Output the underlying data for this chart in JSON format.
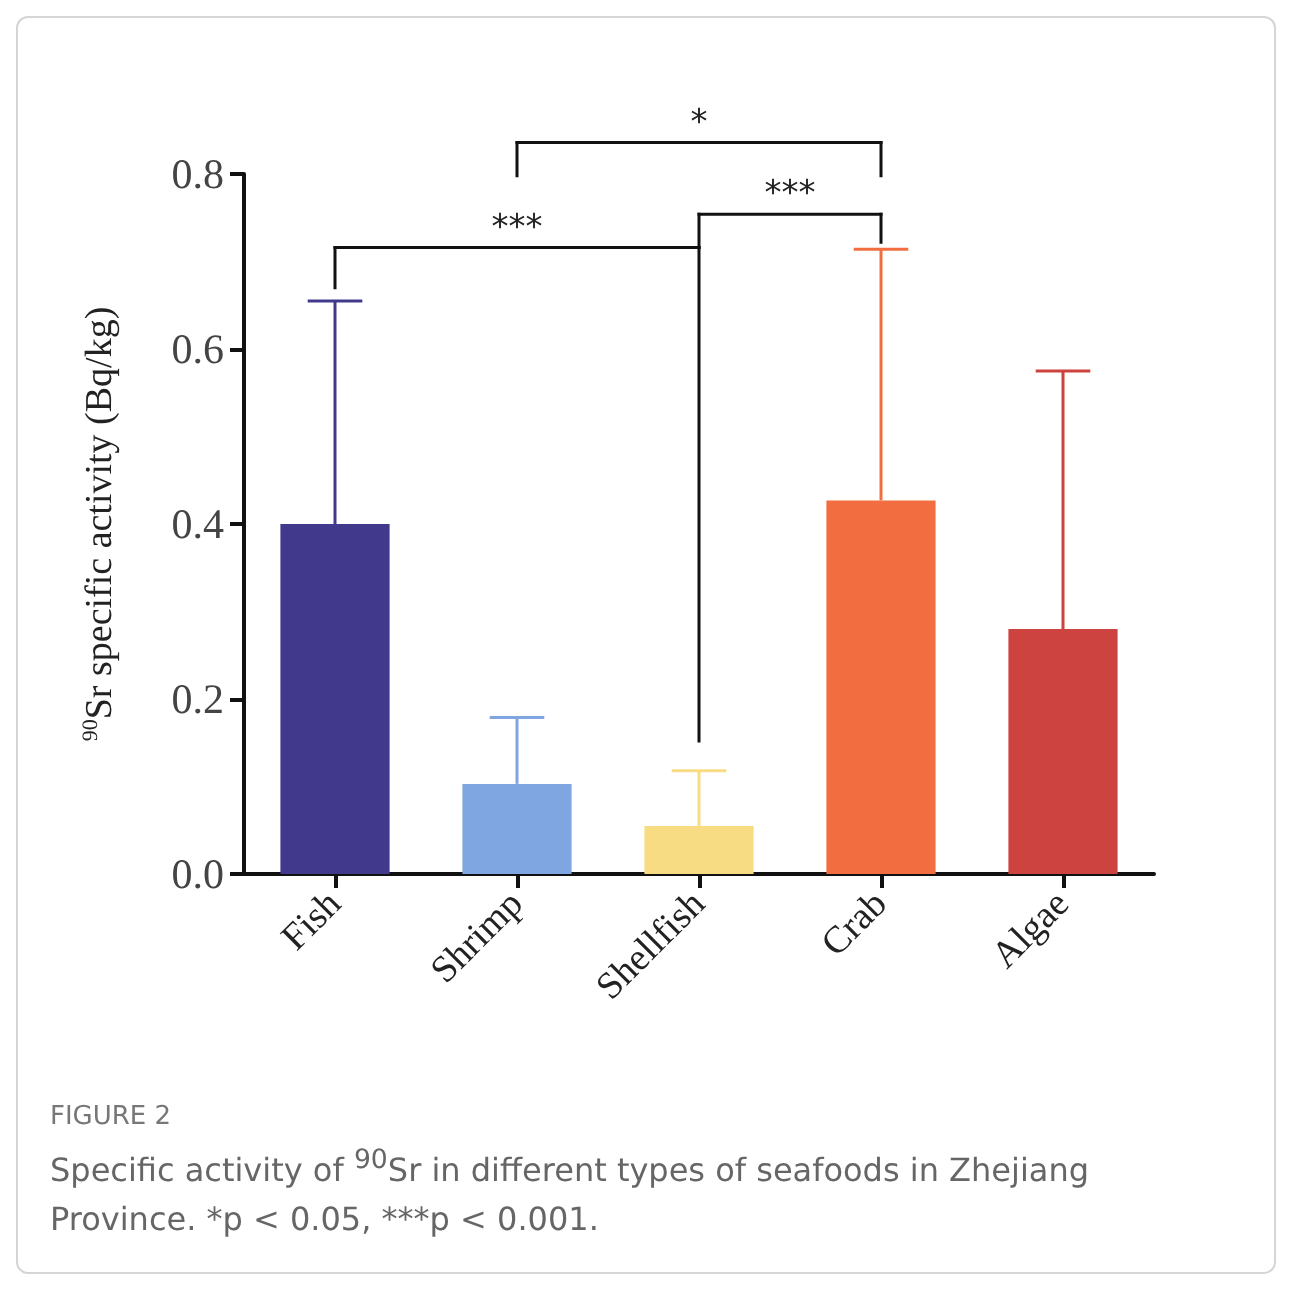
{
  "chart_data": {
    "type": "bar",
    "ylabel": "$^{90}$Sr specific activity (Bq/kg)",
    "categories": [
      "Fish",
      "Shrimp",
      "Shellfish",
      "Crab",
      "Algae"
    ],
    "values": [
      0.4,
      0.103,
      0.055,
      0.427,
      0.28
    ],
    "colors": [
      "#413a8c",
      "#7fa6e0",
      "#f8dc84",
      "#f26e41",
      "#cc433f"
    ],
    "errors": [
      0.255,
      0.076,
      0.063,
      0.287,
      0.295
    ],
    "ylim": [
      0,
      0.8
    ],
    "yticks": [
      {
        "value": 0,
        "label": "0.0"
      },
      {
        "value": 0.2,
        "label": "0.2"
      },
      {
        "value": 0.4,
        "label": "0.4"
      },
      {
        "value": 0.6,
        "label": "0.6"
      },
      {
        "value": 0.8,
        "label": "0.8"
      }
    ],
    "grid": false,
    "annotations": [
      "*",
      "***",
      "***",
      "FIGURE 2",
      "Specific activity of $^{90}$Sr in different types of seafoods in Zhejiang Province. *p < 0.05, ***p < 0.001."
    ]
  }
}
